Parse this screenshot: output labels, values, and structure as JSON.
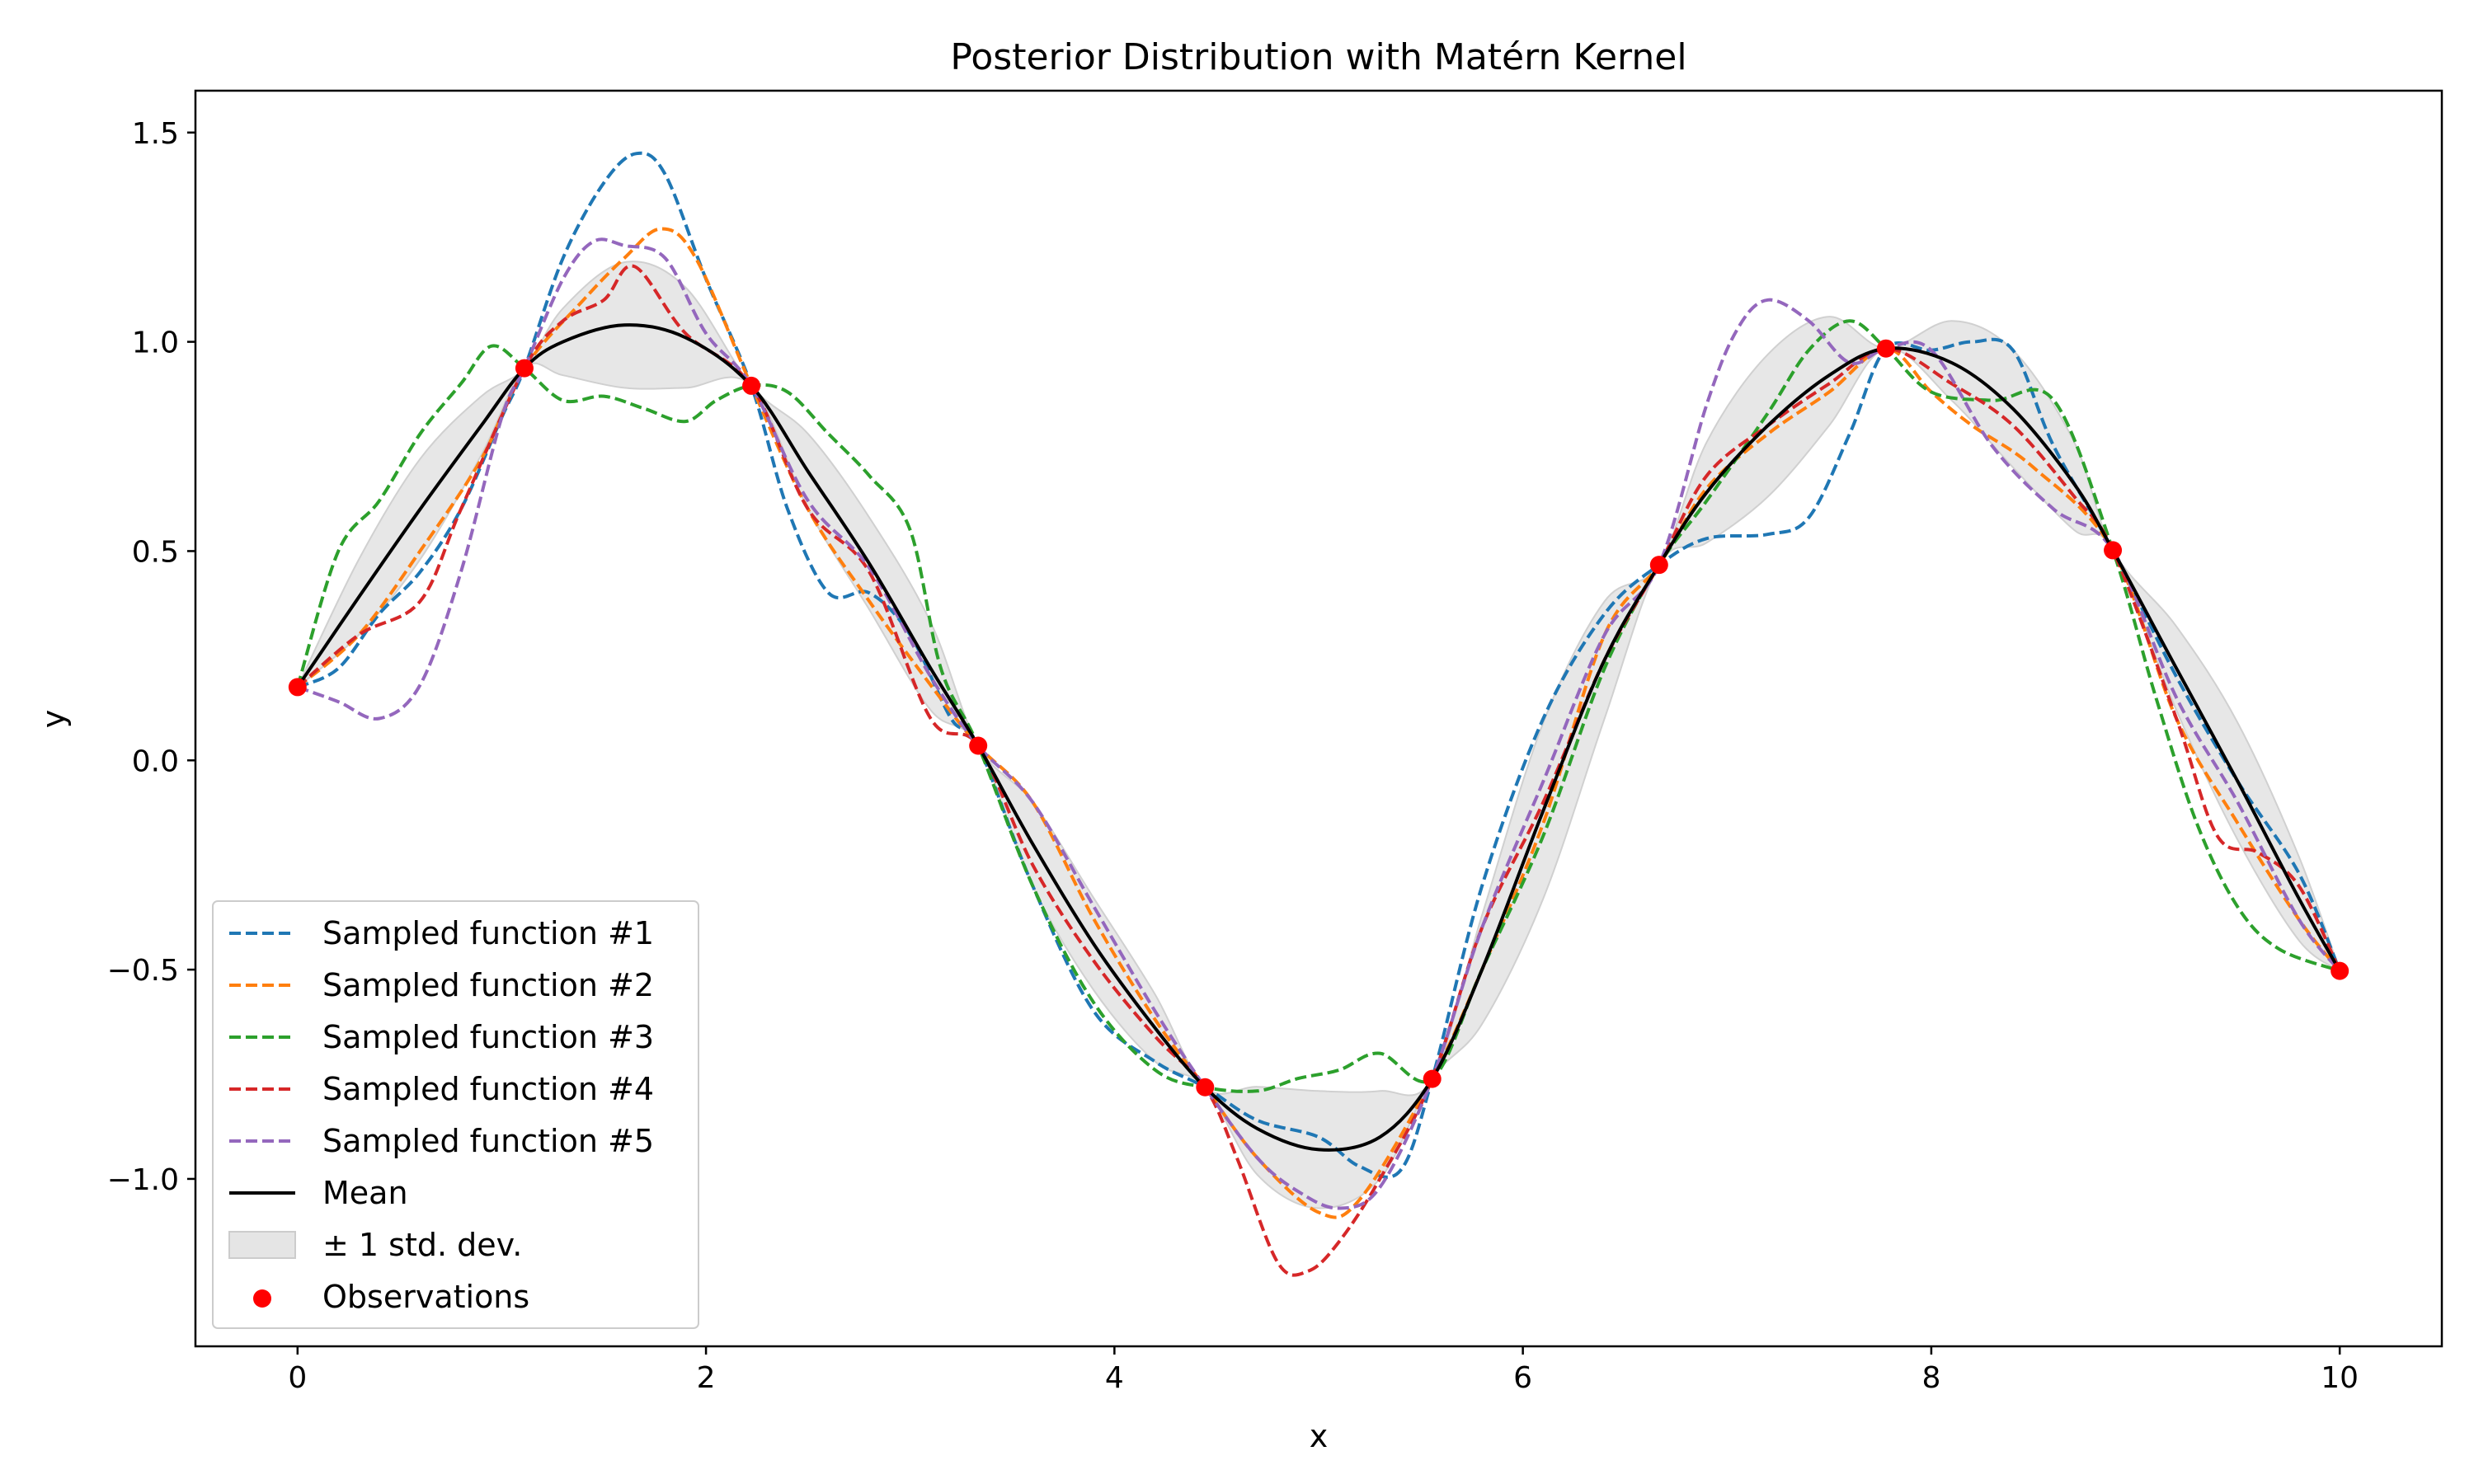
{
  "chart_data": {
    "type": "line",
    "title": "Posterior Distribution with Matérn Kernel",
    "xlabel": "x",
    "ylabel": "y",
    "xlim": [
      -0.5,
      10.5
    ],
    "ylim": [
      -1.4,
      1.6
    ],
    "x_ticks": [
      0,
      2,
      4,
      6,
      8,
      10
    ],
    "x_tick_labels": [
      "0",
      "2",
      "4",
      "6",
      "8",
      "10"
    ],
    "y_ticks": [
      1.5,
      1.0,
      0.5,
      0.0,
      -0.5,
      -1.0
    ],
    "y_tick_labels": [
      "1.5",
      "1.0",
      "0.5",
      "0.0",
      "−0.5",
      "−1.0"
    ],
    "grid": false,
    "legend_position": "lower-left",
    "observations": {
      "name": "Observations",
      "color": "#ff0000",
      "x": [
        0,
        1.111,
        2.222,
        3.333,
        4.444,
        5.556,
        6.667,
        7.778,
        8.889,
        10
      ],
      "y": [
        0.175,
        0.937,
        0.895,
        0.035,
        -0.781,
        -0.761,
        0.467,
        0.984,
        0.502,
        -0.503
      ]
    },
    "mean": {
      "name": "Mean",
      "color": "#000000",
      "x": [
        0,
        0.3,
        0.6,
        0.9,
        1.111,
        1.3,
        1.6,
        1.9,
        2.222,
        2.5,
        2.8,
        3.1,
        3.333,
        3.6,
        3.9,
        4.2,
        4.444,
        4.7,
        5.0,
        5.3,
        5.556,
        5.8,
        6.1,
        6.4,
        6.667,
        6.9,
        7.2,
        7.5,
        7.778,
        8.1,
        8.4,
        8.7,
        8.889,
        9.2,
        9.5,
        9.8,
        10
      ],
      "y": [
        0.175,
        0.39,
        0.6,
        0.8,
        0.937,
        1.0,
        1.04,
        1.01,
        0.895,
        0.69,
        0.47,
        0.22,
        0.035,
        -0.2,
        -0.44,
        -0.64,
        -0.781,
        -0.88,
        -0.93,
        -0.9,
        -0.761,
        -0.5,
        -0.12,
        0.24,
        0.467,
        0.64,
        0.8,
        0.92,
        0.984,
        0.95,
        0.84,
        0.66,
        0.502,
        0.22,
        -0.05,
        -0.33,
        -0.503
      ]
    },
    "std_band": {
      "name": "± 1 std. dev.",
      "color": "#e5e5e5",
      "x": [
        0,
        0.3,
        0.6,
        0.9,
        1.111,
        1.3,
        1.6,
        1.9,
        2.222,
        2.5,
        2.8,
        3.1,
        3.333,
        3.6,
        3.9,
        4.2,
        4.444,
        4.7,
        5.0,
        5.3,
        5.556,
        5.8,
        6.1,
        6.4,
        6.667,
        6.9,
        7.2,
        7.5,
        7.778,
        8.1,
        8.4,
        8.7,
        8.889,
        9.2,
        9.5,
        9.8,
        10
      ],
      "lower": [
        0.175,
        0.3,
        0.48,
        0.73,
        0.937,
        0.92,
        0.89,
        0.89,
        0.895,
        0.6,
        0.36,
        0.12,
        0.035,
        -0.3,
        -0.55,
        -0.72,
        -0.781,
        -0.99,
        -1.07,
        -1.0,
        -0.761,
        -0.63,
        -0.33,
        0.1,
        0.467,
        0.52,
        0.63,
        0.8,
        0.984,
        0.86,
        0.7,
        0.55,
        0.502,
        0.12,
        -0.19,
        -0.43,
        -0.503
      ],
      "upper": [
        0.175,
        0.48,
        0.72,
        0.87,
        0.937,
        1.08,
        1.19,
        1.13,
        0.895,
        0.78,
        0.58,
        0.33,
        0.035,
        -0.1,
        -0.33,
        -0.56,
        -0.781,
        -0.78,
        -0.79,
        -0.79,
        -0.761,
        -0.37,
        0.09,
        0.38,
        0.467,
        0.76,
        0.97,
        1.06,
        0.984,
        1.05,
        0.98,
        0.76,
        0.502,
        0.32,
        0.09,
        -0.23,
        -0.503
      ]
    },
    "series": [
      {
        "name": "Sampled function #1",
        "color": "#1f77b4",
        "x": [
          0,
          0.2,
          0.4,
          0.6,
          0.8,
          1.0,
          1.111,
          1.3,
          1.5,
          1.66,
          1.8,
          2.0,
          2.222,
          2.4,
          2.6,
          2.8,
          3.0,
          3.2,
          3.333,
          3.6,
          3.9,
          4.2,
          4.444,
          4.7,
          5.0,
          5.2,
          5.4,
          5.556,
          5.8,
          6.1,
          6.4,
          6.667,
          6.9,
          7.2,
          7.4,
          7.6,
          7.778,
          8.0,
          8.2,
          8.4,
          8.6,
          8.889,
          9.2,
          9.5,
          9.8,
          10
        ],
        "y": [
          0.175,
          0.22,
          0.35,
          0.45,
          0.6,
          0.82,
          0.937,
          1.2,
          1.38,
          1.45,
          1.4,
          1.15,
          0.895,
          0.6,
          0.4,
          0.4,
          0.3,
          0.1,
          0.035,
          -0.3,
          -0.6,
          -0.72,
          -0.781,
          -0.86,
          -0.9,
          -0.97,
          -0.98,
          -0.761,
          -0.3,
          0.1,
          0.35,
          0.467,
          0.53,
          0.54,
          0.58,
          0.78,
          0.984,
          0.98,
          1.0,
          0.98,
          0.75,
          0.502,
          0.2,
          -0.05,
          -0.27,
          -0.503
        ]
      },
      {
        "name": "Sampled function #2",
        "color": "#ff7f0e",
        "x": [
          0,
          0.3,
          0.6,
          0.9,
          1.111,
          1.4,
          1.6,
          1.78,
          1.95,
          2.222,
          2.5,
          2.8,
          3.1,
          3.333,
          3.6,
          3.9,
          4.2,
          4.444,
          4.7,
          5.0,
          5.2,
          5.556,
          5.8,
          6.1,
          6.4,
          6.667,
          6.9,
          7.2,
          7.5,
          7.778,
          8.0,
          8.2,
          8.5,
          8.889,
          9.2,
          9.5,
          9.8,
          10
        ],
        "y": [
          0.175,
          0.3,
          0.5,
          0.72,
          0.937,
          1.1,
          1.2,
          1.27,
          1.2,
          0.895,
          0.6,
          0.38,
          0.18,
          0.035,
          -0.1,
          -0.38,
          -0.62,
          -0.781,
          -0.95,
          -1.08,
          -1.05,
          -0.761,
          -0.5,
          -0.15,
          0.3,
          0.467,
          0.65,
          0.78,
          0.88,
          0.984,
          0.88,
          0.8,
          0.7,
          0.502,
          0.1,
          -0.15,
          -0.38,
          -0.503
        ]
      },
      {
        "name": "Sampled function #3",
        "color": "#2ca02c",
        "x": [
          0,
          0.2,
          0.4,
          0.6,
          0.8,
          0.95,
          1.111,
          1.3,
          1.5,
          1.7,
          1.9,
          2.05,
          2.222,
          2.4,
          2.6,
          2.8,
          3.0,
          3.15,
          3.333,
          3.6,
          3.9,
          4.2,
          4.444,
          4.7,
          4.9,
          5.1,
          5.3,
          5.556,
          5.8,
          6.1,
          6.4,
          6.667,
          6.9,
          7.2,
          7.4,
          7.6,
          7.778,
          8.0,
          8.3,
          8.6,
          8.889,
          9.1,
          9.3,
          9.5,
          9.7,
          10
        ],
        "y": [
          0.175,
          0.5,
          0.62,
          0.78,
          0.9,
          0.99,
          0.937,
          0.86,
          0.87,
          0.84,
          0.81,
          0.86,
          0.895,
          0.88,
          0.78,
          0.68,
          0.55,
          0.22,
          0.035,
          -0.3,
          -0.58,
          -0.74,
          -0.781,
          -0.79,
          -0.76,
          -0.74,
          -0.7,
          -0.761,
          -0.5,
          -0.18,
          0.22,
          0.467,
          0.62,
          0.83,
          0.98,
          1.05,
          0.984,
          0.88,
          0.86,
          0.86,
          0.502,
          0.15,
          -0.15,
          -0.35,
          -0.45,
          -0.503
        ]
      },
      {
        "name": "Sampled function #4",
        "color": "#d62728",
        "x": [
          0,
          0.3,
          0.6,
          0.8,
          1.111,
          1.3,
          1.5,
          1.65,
          1.9,
          2.222,
          2.5,
          2.8,
          3.1,
          3.333,
          3.6,
          3.9,
          4.2,
          4.444,
          4.6,
          4.8,
          4.95,
          5.1,
          5.3,
          5.556,
          5.8,
          6.1,
          6.4,
          6.667,
          6.9,
          7.2,
          7.5,
          7.778,
          8.1,
          8.4,
          8.7,
          8.889,
          9.2,
          9.4,
          9.6,
          9.8,
          10
        ],
        "y": [
          0.175,
          0.3,
          0.38,
          0.6,
          0.937,
          1.05,
          1.1,
          1.18,
          1.02,
          0.895,
          0.6,
          0.45,
          0.1,
          0.035,
          -0.25,
          -0.48,
          -0.66,
          -0.781,
          -0.95,
          -1.2,
          -1.22,
          -1.15,
          -1.0,
          -0.761,
          -0.4,
          -0.1,
          0.24,
          0.467,
          0.68,
          0.8,
          0.9,
          0.984,
          0.9,
          0.8,
          0.63,
          0.502,
          0.1,
          -0.18,
          -0.22,
          -0.3,
          -0.503
        ]
      },
      {
        "name": "Sampled function #5",
        "color": "#9467bd",
        "x": [
          0,
          0.2,
          0.4,
          0.6,
          0.8,
          1.0,
          1.111,
          1.3,
          1.45,
          1.6,
          1.8,
          2.0,
          2.222,
          2.5,
          2.8,
          3.1,
          3.333,
          3.6,
          3.9,
          4.2,
          4.444,
          4.7,
          4.9,
          5.1,
          5.3,
          5.556,
          5.8,
          6.1,
          6.4,
          6.667,
          6.9,
          7.05,
          7.2,
          7.4,
          7.6,
          7.778,
          8.0,
          8.3,
          8.6,
          8.889,
          9.2,
          9.5,
          9.8,
          10
        ],
        "y": [
          0.175,
          0.14,
          0.1,
          0.18,
          0.45,
          0.82,
          0.937,
          1.15,
          1.24,
          1.23,
          1.2,
          1.02,
          0.895,
          0.62,
          0.46,
          0.2,
          0.035,
          -0.1,
          -0.35,
          -0.6,
          -0.781,
          -0.95,
          -1.03,
          -1.07,
          -1.02,
          -0.761,
          -0.4,
          -0.05,
          0.3,
          0.467,
          0.85,
          1.03,
          1.1,
          1.05,
          0.95,
          0.984,
          0.98,
          0.75,
          0.6,
          0.502,
          0.15,
          -0.1,
          -0.38,
          -0.503
        ]
      }
    ]
  }
}
